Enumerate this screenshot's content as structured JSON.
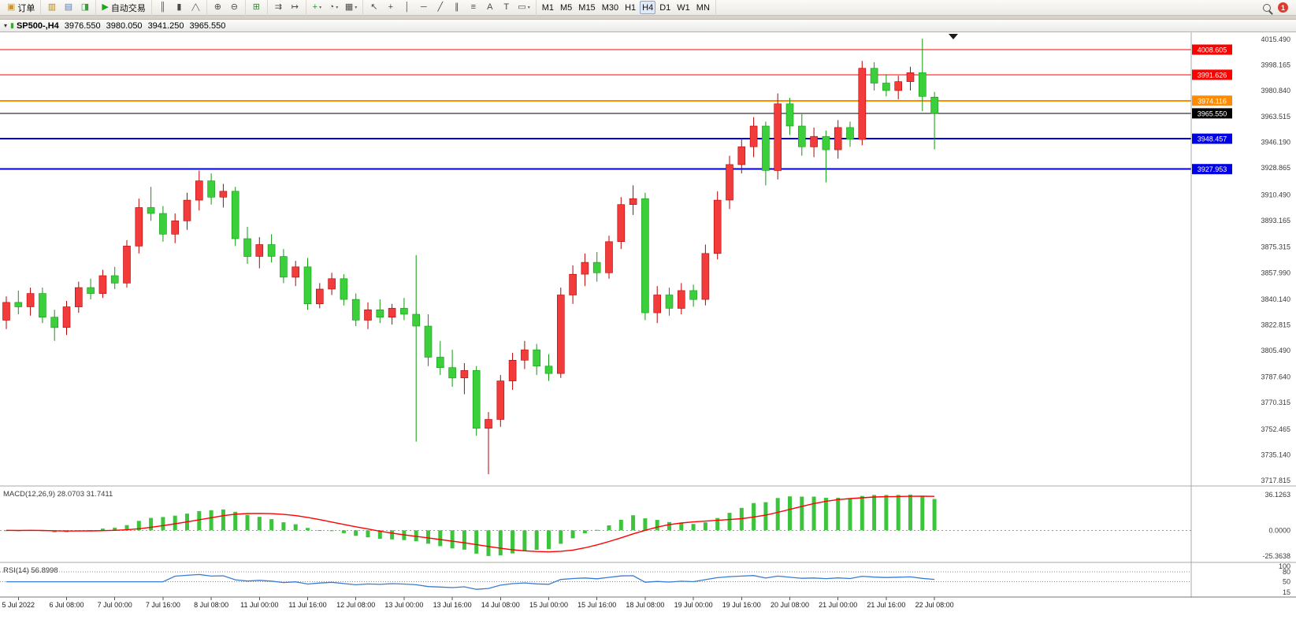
{
  "toolbar": {
    "groups": [
      {
        "name": "order-group",
        "items": [
          {
            "name": "new-order-button",
            "glyph": "▣",
            "color": "#c9962b",
            "label": "订单"
          }
        ]
      },
      {
        "name": "panels-group",
        "items": [
          {
            "name": "market-watch-button",
            "glyph": "▥",
            "color": "#b8860b"
          },
          {
            "name": "navigator-button",
            "glyph": "▤",
            "color": "#5b7fb5"
          },
          {
            "name": "terminal-button",
            "glyph": "◨",
            "color": "#3f9b3f"
          }
        ]
      },
      {
        "name": "autotrading-group",
        "items": [
          {
            "name": "autotrading-button",
            "glyph": "▶",
            "color": "#18a818",
            "label": "自动交易"
          }
        ]
      },
      {
        "name": "chart-type-group",
        "items": [
          {
            "name": "bar-chart-button",
            "glyph": "║"
          },
          {
            "name": "candlestick-chart-button",
            "glyph": "▮"
          },
          {
            "name": "line-chart-button",
            "glyph": "╱╲"
          }
        ]
      },
      {
        "name": "zoom-group",
        "items": [
          {
            "name": "zoom-in-button",
            "glyph": "⊕"
          },
          {
            "name": "zoom-out-button",
            "glyph": "⊖"
          }
        ]
      },
      {
        "name": "window-group",
        "items": [
          {
            "name": "tile-windows-button",
            "glyph": "⊞",
            "color": "#2e8b2e"
          }
        ]
      },
      {
        "name": "scroll-group",
        "items": [
          {
            "name": "auto-scroll-button",
            "glyph": "⇉"
          },
          {
            "name": "chart-shift-button",
            "glyph": "↦"
          }
        ]
      },
      {
        "name": "chart-tools-group",
        "items": [
          {
            "name": "indicators-button",
            "glyph": "+",
            "color": "#1a9c1a",
            "dropdown": true
          },
          {
            "name": "periods-button",
            "glyph": "◔",
            "dropdown": true
          },
          {
            "name": "templates-button",
            "glyph": "▦",
            "dropdown": true
          }
        ]
      },
      {
        "name": "drawing-group",
        "items": [
          {
            "name": "cursor-button",
            "glyph": "↖"
          },
          {
            "name": "crosshair-button",
            "glyph": "+"
          },
          {
            "name": "vertical-line-button",
            "glyph": "│"
          },
          {
            "name": "horizontal-line-button",
            "glyph": "─"
          },
          {
            "name": "trendline-button",
            "glyph": "╱"
          },
          {
            "name": "channel-button",
            "glyph": "∥"
          },
          {
            "name": "fibonacci-button",
            "glyph": "≡"
          },
          {
            "name": "text-button",
            "glyph": "A"
          },
          {
            "name": "text-label-button",
            "glyph": "T"
          },
          {
            "name": "shapes-button",
            "glyph": "▭",
            "dropdown": true
          }
        ]
      },
      {
        "name": "timeframe-group",
        "items": [
          {
            "name": "timeframe-m1-button",
            "label": "M1"
          },
          {
            "name": "timeframe-m5-button",
            "label": "M5"
          },
          {
            "name": "timeframe-m15-button",
            "label": "M15"
          },
          {
            "name": "timeframe-m30-button",
            "label": "M30"
          },
          {
            "name": "timeframe-h1-button",
            "label": "H1"
          },
          {
            "name": "timeframe-h4-button",
            "label": "H4",
            "active": true
          },
          {
            "name": "timeframe-d1-button",
            "label": "D1"
          },
          {
            "name": "timeframe-w1-button",
            "label": "W1"
          },
          {
            "name": "timeframe-mn-button",
            "label": "MN"
          }
        ]
      }
    ],
    "right": {
      "badge": "1"
    }
  },
  "chart_window": {
    "title": {
      "symbol_period": "SP500-,H4",
      "open": "3976.550",
      "high": "3980.050",
      "low": "3941.250",
      "close": "3965.550"
    }
  },
  "chart_data": {
    "type": "candlestick",
    "symbol": "SP500-",
    "period": "H4",
    "ohlc_display": {
      "open": 3976.55,
      "high": 3980.05,
      "low": 3941.25,
      "close": 3965.55
    },
    "colors": {
      "up": "#f23b3b",
      "up_stroke": "#bb0000",
      "down": "#3bd03b",
      "down_stroke": "#0f9a0f"
    },
    "candles": [
      [
        3826,
        3842,
        3820,
        3838
      ],
      [
        3838,
        3846,
        3830,
        3835
      ],
      [
        3835,
        3848,
        3829,
        3844
      ],
      [
        3844,
        3848,
        3824,
        3828
      ],
      [
        3828,
        3833,
        3812,
        3821
      ],
      [
        3821,
        3839,
        3816,
        3835
      ],
      [
        3835,
        3852,
        3831,
        3848
      ],
      [
        3848,
        3854,
        3840,
        3844
      ],
      [
        3844,
        3860,
        3841,
        3856
      ],
      [
        3856,
        3862,
        3847,
        3851
      ],
      [
        3851,
        3880,
        3848,
        3876
      ],
      [
        3876,
        3908,
        3871,
        3902
      ],
      [
        3902,
        3916,
        3893,
        3898
      ],
      [
        3898,
        3903,
        3879,
        3884
      ],
      [
        3884,
        3898,
        3878,
        3893
      ],
      [
        3893,
        3912,
        3887,
        3907
      ],
      [
        3907,
        3927,
        3900,
        3920
      ],
      [
        3920,
        3925,
        3904,
        3909
      ],
      [
        3909,
        3918,
        3902,
        3913
      ],
      [
        3913,
        3916,
        3876,
        3881
      ],
      [
        3881,
        3889,
        3864,
        3869
      ],
      [
        3869,
        3882,
        3861,
        3877
      ],
      [
        3877,
        3884,
        3865,
        3869
      ],
      [
        3869,
        3874,
        3851,
        3855
      ],
      [
        3855,
        3866,
        3849,
        3862
      ],
      [
        3862,
        3868,
        3833,
        3837
      ],
      [
        3837,
        3851,
        3834,
        3847
      ],
      [
        3847,
        3858,
        3843,
        3854
      ],
      [
        3854,
        3857,
        3836,
        3840
      ],
      [
        3840,
        3844,
        3822,
        3826
      ],
      [
        3826,
        3838,
        3820,
        3833
      ],
      [
        3833,
        3840,
        3824,
        3828
      ],
      [
        3828,
        3837,
        3823,
        3834
      ],
      [
        3834,
        3841,
        3826,
        3830
      ],
      [
        3830,
        3870,
        3744,
        3822
      ],
      [
        3822,
        3830,
        3795,
        3801
      ],
      [
        3801,
        3812,
        3789,
        3794
      ],
      [
        3794,
        3806,
        3781,
        3787
      ],
      [
        3787,
        3797,
        3776,
        3792
      ],
      [
        3792,
        3795,
        3748,
        3753
      ],
      [
        3753,
        3764,
        3722,
        3759
      ],
      [
        3759,
        3789,
        3754,
        3785
      ],
      [
        3785,
        3804,
        3779,
        3799
      ],
      [
        3799,
        3812,
        3793,
        3806
      ],
      [
        3806,
        3810,
        3789,
        3795
      ],
      [
        3795,
        3803,
        3785,
        3790
      ],
      [
        3790,
        3848,
        3787,
        3843
      ],
      [
        3843,
        3863,
        3837,
        3857
      ],
      [
        3857,
        3871,
        3849,
        3865
      ],
      [
        3865,
        3872,
        3852,
        3858
      ],
      [
        3858,
        3883,
        3854,
        3879
      ],
      [
        3879,
        3909,
        3874,
        3904
      ],
      [
        3904,
        3917,
        3897,
        3908
      ],
      [
        3908,
        3912,
        3826,
        3831
      ],
      [
        3831,
        3849,
        3824,
        3843
      ],
      [
        3843,
        3848,
        3829,
        3834
      ],
      [
        3834,
        3851,
        3830,
        3846
      ],
      [
        3846,
        3850,
        3835,
        3840
      ],
      [
        3840,
        3877,
        3836,
        3871
      ],
      [
        3871,
        3913,
        3867,
        3907
      ],
      [
        3907,
        3937,
        3901,
        3931
      ],
      [
        3931,
        3949,
        3925,
        3943
      ],
      [
        3943,
        3963,
        3936,
        3957
      ],
      [
        3957,
        3960,
        3917,
        3927
      ],
      [
        3927,
        3979,
        3921,
        3972
      ],
      [
        3972,
        3976,
        3951,
        3957
      ],
      [
        3957,
        3965,
        3937,
        3943
      ],
      [
        3943,
        3956,
        3936,
        3950
      ],
      [
        3950,
        3954,
        3919,
        3941
      ],
      [
        3941,
        3961,
        3935,
        3956
      ],
      [
        3956,
        3960,
        3943,
        3948
      ],
      [
        3948,
        4001,
        3944,
        3996
      ],
      [
        3996,
        4000,
        3981,
        3986
      ],
      [
        3986,
        3992,
        3977,
        3981
      ],
      [
        3981,
        3991,
        3975,
        3987
      ],
      [
        3987,
        3997,
        3981,
        3993
      ],
      [
        3993,
        4016,
        3967,
        3977
      ],
      [
        3976.55,
        3980.05,
        3941.25,
        3965.55
      ]
    ],
    "price_axis": {
      "max": 4015.49,
      "min": 3717.815,
      "labels": [
        "4015.490",
        "3998.165",
        "3980.840",
        "3963.515",
        "3946.190",
        "3928.865",
        "3910.490",
        "3893.165",
        "3875.315",
        "3857.990",
        "3840.140",
        "3822.815",
        "3805.490",
        "3787.640",
        "3770.315",
        "3752.465",
        "3735.140",
        "3717.815"
      ]
    },
    "hlines": [
      {
        "label": "4008.605",
        "price": 4008.605,
        "color": "#ff0000",
        "width": 1
      },
      {
        "label": "3991.626",
        "price": 3991.626,
        "color": "#ff0000",
        "width": 1
      },
      {
        "label": "3974.116",
        "price": 3974.116,
        "color": "#ff8c00",
        "width": 2
      },
      {
        "label": "3965.550",
        "price": 3965.55,
        "color": "#000000",
        "width": 1
      },
      {
        "label": "3948.457",
        "price": 3948.457,
        "color": "#0000e6",
        "width": 2
      },
      {
        "label": "3927.953",
        "price": 3927.953,
        "color": "#0000e6",
        "width": 2
      }
    ],
    "time_axis": [
      "5 Jul 2022",
      "6 Jul 08:00",
      "7 Jul 00:00",
      "7 Jul 16:00",
      "8 Jul 08:00",
      "11 Jul 00:00",
      "11 Jul 16:00",
      "12 Jul 08:00",
      "13 Jul 00:00",
      "13 Jul 16:00",
      "14 Jul 08:00",
      "15 Jul 00:00",
      "15 Jul 16:00",
      "18 Jul 08:00",
      "19 Jul 00:00",
      "19 Jul 16:00",
      "20 Jul 08:00",
      "21 Jul 00:00",
      "21 Jul 16:00",
      "22 Jul 08:00"
    ],
    "indicators": {
      "macd": {
        "label": "MACD(12,26,9)",
        "values_text": [
          "28.0703",
          "31.7411"
        ],
        "params": {
          "fast": 12,
          "slow": 26,
          "signal": 9
        },
        "axis_labels": [
          "36.1263",
          "0.0000",
          "-25.3638"
        ],
        "colors": {
          "histogram": "#3cc43c",
          "signal": "#ff0000"
        }
      },
      "rsi": {
        "label": "RSI(14)",
        "value_text": "56.8998",
        "period": 14,
        "levels": [
          80,
          50
        ],
        "axis_labels": [
          "100",
          "80",
          "50",
          "15"
        ],
        "color": "#3a7bd5"
      }
    }
  }
}
